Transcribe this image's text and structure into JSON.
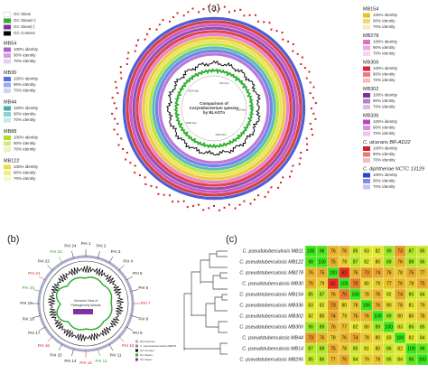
{
  "panels": {
    "a": "(a)",
    "b": "(b)",
    "c": "(c)"
  },
  "a": {
    "gc": [
      {
        "label": "GC Skew",
        "color": "#ffffff"
      },
      {
        "label": "GC Skew(+)",
        "color": "#30b030"
      },
      {
        "label": "GC Skew(-)",
        "color": "#8030a0"
      },
      {
        "label": "GC Content",
        "color": "#000000"
      }
    ],
    "identity": [
      "100% identity",
      "90% identity",
      "70% identity"
    ],
    "left": [
      {
        "name": "MB54",
        "color": "#b060d0"
      },
      {
        "name": "MB30",
        "color": "#5a6ee0"
      },
      {
        "name": "MB44",
        "color": "#40b0b0"
      },
      {
        "name": "MB88",
        "color": "#b0e020"
      },
      {
        "name": "MB122",
        "color": "#e8e040"
      }
    ],
    "right": [
      {
        "name": "MB154",
        "color": "#e8c020"
      },
      {
        "name": "MB278",
        "color": "#e070c0"
      },
      {
        "name": "MB306",
        "color": "#e02030"
      },
      {
        "name": "MB302",
        "color": "#8030a0"
      },
      {
        "name": "MB336",
        "color": "#c040c0"
      },
      {
        "name": "C. ulcerans BR-AD22",
        "color": "#d02020"
      },
      {
        "name": "C. diphtheriae NCTC 13129",
        "color": "#3040d0"
      }
    ],
    "center": [
      "Comparison of",
      "Corynebacterium species",
      "by BLASTn"
    ],
    "kbp": [
      "100 kbp",
      "500 kbp",
      "1000 kbp",
      "1500 kbp",
      "2000 kbp"
    ]
  },
  "b": {
    "center": [
      "Genomic View of",
      "Pathogenicity Islands"
    ],
    "pai": [
      {
        "label": "PAI 1",
        "color": "#222"
      },
      {
        "label": "PAI 2",
        "color": "#222"
      },
      {
        "label": "PAI 3",
        "color": "#222"
      },
      {
        "label": "PAI 4",
        "color": "#222"
      },
      {
        "label": "PAI 5",
        "color": "#222"
      },
      {
        "label": "PAI 6",
        "color": "#222"
      },
      {
        "label": "PAI 7",
        "color": "#d02020"
      },
      {
        "label": "PAI 8",
        "color": "#222"
      },
      {
        "label": "PAI 9",
        "color": "#222"
      },
      {
        "label": "PAI 10",
        "color": "#d02020"
      },
      {
        "label": "PAI 11",
        "color": "#222"
      },
      {
        "label": "PAI 12",
        "color": "#30a030"
      },
      {
        "label": "PAI 13",
        "color": "#d02020"
      },
      {
        "label": "PAI 14",
        "color": "#222"
      },
      {
        "label": "PAI 15",
        "color": "#222"
      },
      {
        "label": "PAI 16",
        "color": "#d02020"
      },
      {
        "label": "PAI 17",
        "color": "#222"
      },
      {
        "label": "PAI 18",
        "color": "#222"
      },
      {
        "label": "PAI 19",
        "color": "#222"
      },
      {
        "label": "PAI 20",
        "color": "#30a030"
      },
      {
        "label": "PAI 21",
        "color": "#d02020"
      },
      {
        "label": "PAI 22",
        "color": "#222"
      },
      {
        "label": "PAI 23",
        "color": "#30a030"
      },
      {
        "label": "PAI 24",
        "color": "#222"
      }
    ],
    "legend": [
      "PAI Genome",
      "C. pseudotuberculosis MB278",
      "GC Content",
      "GC Skew+",
      "GC Skew-"
    ]
  },
  "c": {
    "rows": [
      "C. pseudotuberculosis MB11",
      "C. pseudotuberculosis MB122",
      "C. pseudotuberculosis MB278",
      "C. pseudotuberculosis MB30",
      "C. pseudotuberculosis MB154",
      "C. pseudotuberculosis MB336",
      "C. pseudotuberculosis MB302",
      "C. pseudotuberculosis MB300",
      "C. pseudotuberculosis MB44",
      "C. pseudotuberculosis MB14",
      "C. pseudotuberculosis MB295"
    ],
    "values": [
      [
        100,
        98,
        76,
        76,
        85,
        83,
        82,
        90,
        73,
        87,
        85
      ],
      [
        98,
        100,
        75,
        79,
        87,
        82,
        80,
        89,
        76,
        88,
        86
      ],
      [
        76,
        75,
        100,
        62,
        76,
        73,
        74,
        76,
        78,
        75,
        77
      ],
      [
        76,
        79,
        62,
        100,
        70,
        80,
        79,
        77,
        76,
        78,
        75
      ],
      [
        85,
        87,
        76,
        70,
        100,
        78,
        76,
        82,
        74,
        85,
        84
      ],
      [
        83,
        82,
        73,
        80,
        78,
        100,
        76,
        80,
        78,
        81,
        79
      ],
      [
        82,
        80,
        74,
        79,
        76,
        76,
        100,
        89,
        80,
        80,
        78
      ],
      [
        90,
        89,
        76,
        77,
        82,
        80,
        89,
        100,
        83,
        86,
        85
      ],
      [
        73,
        76,
        78,
        76,
        74,
        78,
        80,
        83,
        100,
        82,
        84
      ],
      [
        87,
        88,
        75,
        78,
        85,
        81,
        80,
        86,
        82,
        100,
        96
      ],
      [
        85,
        86,
        77,
        75,
        84,
        79,
        78,
        85,
        84,
        96,
        100
      ]
    ]
  }
}
